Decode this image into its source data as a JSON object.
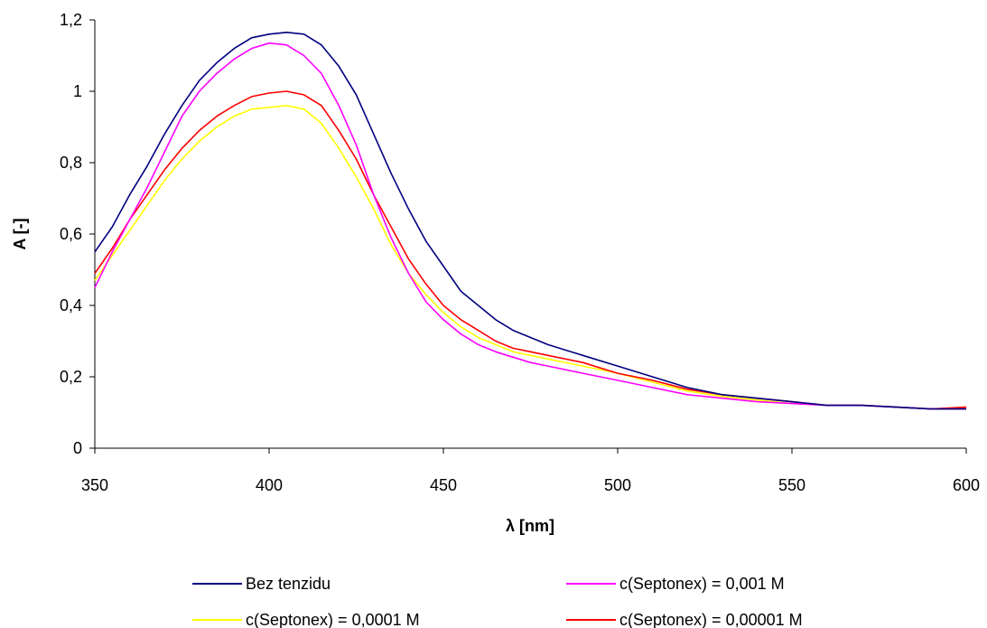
{
  "chart_data": {
    "type": "line",
    "xlabel": "λ [nm]",
    "ylabel": "A [-]",
    "xlim": [
      350,
      600
    ],
    "ylim": [
      0,
      1.2
    ],
    "xticks": [
      350,
      400,
      450,
      500,
      550,
      600
    ],
    "xtick_labels": [
      "350",
      "400",
      "450",
      "500",
      "550",
      "600"
    ],
    "yticks": [
      0,
      0.2,
      0.4,
      0.6,
      0.8,
      1,
      1.2
    ],
    "ytick_labels": [
      "0",
      "0,2",
      "0,4",
      "0,6",
      "0,8",
      "1",
      "1,2"
    ],
    "grid": false,
    "legend_position": "bottom",
    "series": [
      {
        "name": "Bez tenzidu",
        "color": "#000080",
        "x": [
          350,
          355,
          360,
          365,
          370,
          375,
          380,
          385,
          390,
          395,
          400,
          405,
          410,
          415,
          420,
          425,
          430,
          435,
          440,
          445,
          450,
          455,
          460,
          465,
          470,
          475,
          480,
          490,
          500,
          510,
          520,
          530,
          540,
          550,
          560,
          570,
          580,
          590,
          600
        ],
        "y": [
          0.55,
          0.62,
          0.71,
          0.79,
          0.88,
          0.96,
          1.03,
          1.08,
          1.12,
          1.15,
          1.16,
          1.165,
          1.16,
          1.13,
          1.07,
          0.99,
          0.88,
          0.77,
          0.67,
          0.58,
          0.51,
          0.44,
          0.4,
          0.36,
          0.33,
          0.31,
          0.29,
          0.26,
          0.23,
          0.2,
          0.17,
          0.15,
          0.14,
          0.13,
          0.12,
          0.12,
          0.115,
          0.11,
          0.11
        ]
      },
      {
        "name": "c(Septonex) = 0,001 M",
        "color": "#FF00FF",
        "x": [
          350,
          355,
          360,
          365,
          370,
          375,
          380,
          385,
          390,
          395,
          400,
          405,
          410,
          415,
          420,
          425,
          430,
          435,
          440,
          445,
          450,
          455,
          460,
          465,
          470,
          475,
          480,
          490,
          500,
          510,
          520,
          530,
          540,
          550,
          560,
          570,
          580,
          590,
          600
        ],
        "y": [
          0.45,
          0.55,
          0.64,
          0.73,
          0.83,
          0.93,
          1.0,
          1.05,
          1.09,
          1.12,
          1.135,
          1.13,
          1.1,
          1.05,
          0.96,
          0.85,
          0.71,
          0.59,
          0.49,
          0.41,
          0.36,
          0.32,
          0.29,
          0.27,
          0.255,
          0.24,
          0.23,
          0.21,
          0.19,
          0.17,
          0.15,
          0.14,
          0.13,
          0.125,
          0.12,
          0.12,
          0.115,
          0.11,
          0.11
        ]
      },
      {
        "name": "c(Septonex) = 0,0001 M",
        "color": "#FFFF00",
        "x": [
          350,
          355,
          360,
          365,
          370,
          375,
          380,
          385,
          390,
          395,
          400,
          405,
          410,
          415,
          420,
          425,
          430,
          435,
          440,
          445,
          450,
          455,
          460,
          465,
          470,
          475,
          480,
          490,
          500,
          510,
          520,
          530,
          540,
          550,
          560,
          570,
          580,
          590,
          600
        ],
        "y": [
          0.47,
          0.54,
          0.61,
          0.68,
          0.75,
          0.81,
          0.86,
          0.9,
          0.93,
          0.95,
          0.955,
          0.96,
          0.95,
          0.91,
          0.84,
          0.76,
          0.67,
          0.57,
          0.49,
          0.43,
          0.38,
          0.34,
          0.31,
          0.29,
          0.27,
          0.26,
          0.25,
          0.23,
          0.21,
          0.185,
          0.16,
          0.145,
          0.135,
          0.125,
          0.12,
          0.12,
          0.115,
          0.11,
          0.115
        ]
      },
      {
        "name": "c(Septonex) = 0,00001 M",
        "color": "#FF0000",
        "x": [
          350,
          355,
          360,
          365,
          370,
          375,
          380,
          385,
          390,
          395,
          400,
          405,
          410,
          415,
          420,
          425,
          430,
          435,
          440,
          445,
          450,
          455,
          460,
          465,
          470,
          475,
          480,
          490,
          500,
          510,
          520,
          530,
          540,
          550,
          560,
          570,
          580,
          590,
          600
        ],
        "y": [
          0.49,
          0.56,
          0.64,
          0.71,
          0.78,
          0.84,
          0.89,
          0.93,
          0.96,
          0.985,
          0.995,
          1.0,
          0.99,
          0.96,
          0.89,
          0.81,
          0.71,
          0.62,
          0.53,
          0.46,
          0.4,
          0.36,
          0.33,
          0.3,
          0.28,
          0.27,
          0.26,
          0.24,
          0.21,
          0.19,
          0.165,
          0.15,
          0.14,
          0.13,
          0.12,
          0.12,
          0.115,
          0.11,
          0.115
        ]
      }
    ]
  }
}
